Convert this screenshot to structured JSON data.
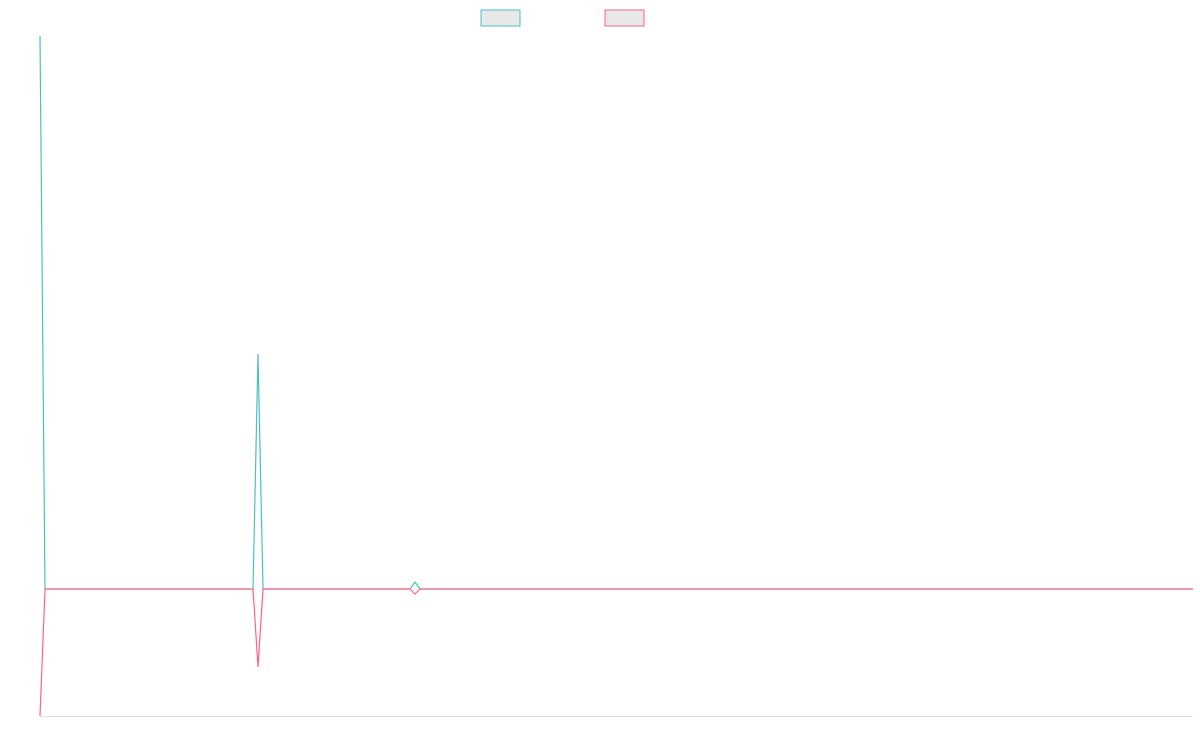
{
  "chart_data": {
    "type": "line",
    "x": [
      0,
      5,
      213,
      218,
      223,
      370,
      375,
      380,
      1153
    ],
    "xlim": [
      0,
      1153
    ],
    "ylim": [
      -12.7,
      55.3
    ],
    "series": [
      {
        "color": "#4bc0c0",
        "values": [
          55.3,
          0,
          0,
          23.5,
          0,
          0,
          0.7,
          0,
          0
        ]
      },
      {
        "color": "#ff6384",
        "values": [
          -12.7,
          0,
          0,
          -7.8,
          0,
          0,
          -0.5,
          0,
          0
        ]
      }
    ]
  }
}
